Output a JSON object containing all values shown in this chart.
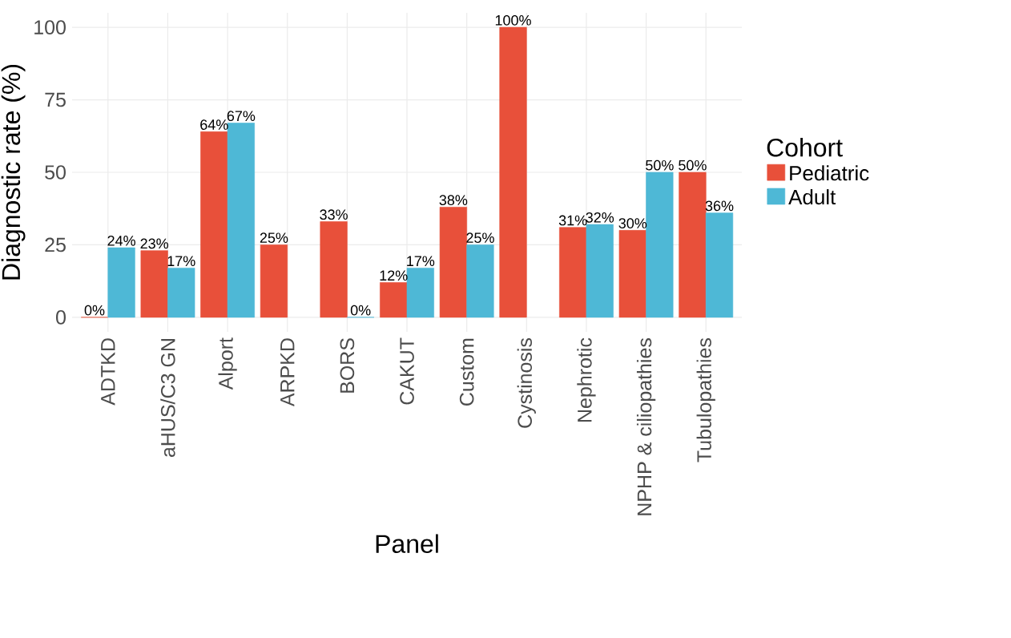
{
  "chart_data": {
    "type": "bar",
    "xlabel": "Panel",
    "ylabel": "Diagnostic rate (%)",
    "legend_title": "Cohort",
    "categories": [
      "ADTKD",
      "aHUS/C3 GN",
      "Alport",
      "ARPKD",
      "BORS",
      "CAKUT",
      "Custom",
      "Cystinosis",
      "Nephrotic",
      "NPHP & ciliopathies",
      "Tubulopathies"
    ],
    "series": [
      {
        "name": "Pediatric",
        "color": "#e8503a",
        "values": [
          0,
          23,
          64,
          25,
          33,
          12,
          38,
          100,
          31,
          30,
          50
        ],
        "value_labels": [
          "0%",
          "23%",
          "64%",
          "25%",
          "33%",
          "12%",
          "38%",
          "100%",
          "31%",
          "30%",
          "50%"
        ]
      },
      {
        "name": "Adult",
        "color": "#4eb8d6",
        "values": [
          24,
          17,
          67,
          null,
          0,
          17,
          25,
          null,
          32,
          50,
          36
        ],
        "value_labels": [
          "24%",
          "17%",
          "67%",
          null,
          "0%",
          "17%",
          "25%",
          null,
          "32%",
          "50%",
          "36%"
        ]
      }
    ],
    "ylim": [
      -5,
      105
    ],
    "yticks": [
      0,
      25,
      50,
      75,
      100
    ],
    "grid": true,
    "legend": "right"
  }
}
